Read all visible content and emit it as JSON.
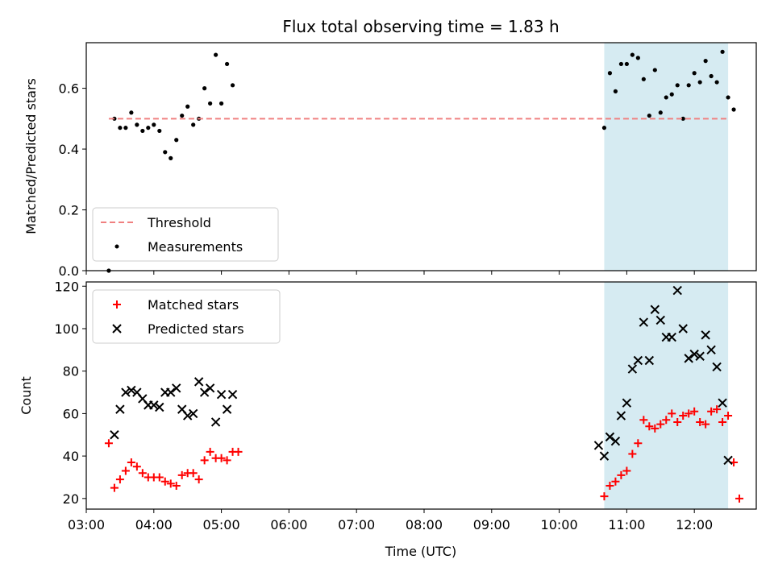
{
  "chart_data": [
    {
      "type": "scatter",
      "title": "Flux total observing time = 1.83 h",
      "xlabel": "",
      "ylabel": "Matched/Predicted stars",
      "xlim": [
        "03:00",
        "12:55"
      ],
      "ylim": [
        0,
        0.75
      ],
      "yticks": [
        "0.0",
        "0.2",
        "0.4",
        "0.6"
      ],
      "highlight_span": {
        "x": [
          "10:40",
          "12:30"
        ],
        "color": "#add8e6"
      },
      "legend": {
        "placement": "lower-left",
        "entries": [
          "Threshold",
          "Measurements"
        ]
      },
      "threshold": {
        "name": "Threshold",
        "y": 0.5,
        "x": [
          "03:20",
          "12:30"
        ],
        "color": "#f08080"
      },
      "series": [
        {
          "name": "Measurements",
          "color": "#000000",
          "points": [
            {
              "x": "03:20",
              "y": 0.0
            },
            {
              "x": "03:25",
              "y": 0.5
            },
            {
              "x": "03:30",
              "y": 0.47
            },
            {
              "x": "03:35",
              "y": 0.47
            },
            {
              "x": "03:40",
              "y": 0.52
            },
            {
              "x": "03:45",
              "y": 0.48
            },
            {
              "x": "03:50",
              "y": 0.46
            },
            {
              "x": "03:55",
              "y": 0.47
            },
            {
              "x": "04:00",
              "y": 0.48
            },
            {
              "x": "04:05",
              "y": 0.46
            },
            {
              "x": "04:10",
              "y": 0.39
            },
            {
              "x": "04:15",
              "y": 0.37
            },
            {
              "x": "04:20",
              "y": 0.43
            },
            {
              "x": "04:25",
              "y": 0.51
            },
            {
              "x": "04:30",
              "y": 0.54
            },
            {
              "x": "04:35",
              "y": 0.48
            },
            {
              "x": "04:40",
              "y": 0.5
            },
            {
              "x": "04:45",
              "y": 0.6
            },
            {
              "x": "04:50",
              "y": 0.55
            },
            {
              "x": "04:55",
              "y": 0.71
            },
            {
              "x": "05:00",
              "y": 0.55
            },
            {
              "x": "05:05",
              "y": 0.68
            },
            {
              "x": "05:10",
              "y": 0.61
            },
            {
              "x": "10:40",
              "y": 0.47
            },
            {
              "x": "10:45",
              "y": 0.65
            },
            {
              "x": "10:50",
              "y": 0.59
            },
            {
              "x": "10:55",
              "y": 0.68
            },
            {
              "x": "11:00",
              "y": 0.68
            },
            {
              "x": "11:05",
              "y": 0.71
            },
            {
              "x": "11:10",
              "y": 0.7
            },
            {
              "x": "11:15",
              "y": 0.63
            },
            {
              "x": "11:20",
              "y": 0.51
            },
            {
              "x": "11:25",
              "y": 0.66
            },
            {
              "x": "11:30",
              "y": 0.52
            },
            {
              "x": "11:35",
              "y": 0.57
            },
            {
              "x": "11:40",
              "y": 0.58
            },
            {
              "x": "11:45",
              "y": 0.61
            },
            {
              "x": "11:50",
              "y": 0.5
            },
            {
              "x": "11:55",
              "y": 0.61
            },
            {
              "x": "12:00",
              "y": 0.65
            },
            {
              "x": "12:05",
              "y": 0.62
            },
            {
              "x": "12:10",
              "y": 0.69
            },
            {
              "x": "12:15",
              "y": 0.64
            },
            {
              "x": "12:20",
              "y": 0.62
            },
            {
              "x": "12:25",
              "y": 0.72
            },
            {
              "x": "12:30",
              "y": 0.57
            },
            {
              "x": "12:35",
              "y": 0.53
            }
          ]
        }
      ]
    },
    {
      "type": "scatter",
      "title": "",
      "xlabel": "Time (UTC)",
      "ylabel": "Count",
      "xlim": [
        "03:00",
        "12:55"
      ],
      "ylim": [
        15,
        122
      ],
      "xticks": [
        "03:00",
        "04:00",
        "05:00",
        "06:00",
        "07:00",
        "08:00",
        "09:00",
        "10:00",
        "11:00",
        "12:00"
      ],
      "yticks": [
        "20",
        "40",
        "60",
        "80",
        "100",
        "120"
      ],
      "highlight_span": {
        "x": [
          "10:40",
          "12:30"
        ],
        "color": "#add8e6"
      },
      "legend": {
        "placement": "upper-left",
        "entries": [
          "Matched stars",
          "Predicted stars"
        ]
      },
      "series": [
        {
          "name": "Matched stars",
          "marker": "plus",
          "color": "#ff0000",
          "points": [
            {
              "x": "03:20",
              "y": 46
            },
            {
              "x": "03:25",
              "y": 25
            },
            {
              "x": "03:30",
              "y": 29
            },
            {
              "x": "03:35",
              "y": 33
            },
            {
              "x": "03:40",
              "y": 37
            },
            {
              "x": "03:45",
              "y": 35
            },
            {
              "x": "03:50",
              "y": 32
            },
            {
              "x": "03:55",
              "y": 30
            },
            {
              "x": "04:00",
              "y": 30
            },
            {
              "x": "04:05",
              "y": 30
            },
            {
              "x": "04:10",
              "y": 28
            },
            {
              "x": "04:15",
              "y": 27
            },
            {
              "x": "04:20",
              "y": 26
            },
            {
              "x": "04:25",
              "y": 31
            },
            {
              "x": "04:30",
              "y": 32
            },
            {
              "x": "04:35",
              "y": 32
            },
            {
              "x": "04:40",
              "y": 29
            },
            {
              "x": "04:45",
              "y": 38
            },
            {
              "x": "04:50",
              "y": 42
            },
            {
              "x": "04:55",
              "y": 39
            },
            {
              "x": "05:00",
              "y": 39
            },
            {
              "x": "05:05",
              "y": 38
            },
            {
              "x": "05:10",
              "y": 42
            },
            {
              "x": "05:15",
              "y": 42
            },
            {
              "x": "10:40",
              "y": 21
            },
            {
              "x": "10:45",
              "y": 26
            },
            {
              "x": "10:50",
              "y": 28
            },
            {
              "x": "10:55",
              "y": 31
            },
            {
              "x": "11:00",
              "y": 33
            },
            {
              "x": "11:05",
              "y": 41
            },
            {
              "x": "11:10",
              "y": 46
            },
            {
              "x": "11:15",
              "y": 57
            },
            {
              "x": "11:20",
              "y": 54
            },
            {
              "x": "11:25",
              "y": 53
            },
            {
              "x": "11:30",
              "y": 55
            },
            {
              "x": "11:35",
              "y": 57
            },
            {
              "x": "11:40",
              "y": 60
            },
            {
              "x": "11:45",
              "y": 56
            },
            {
              "x": "11:50",
              "y": 59
            },
            {
              "x": "11:55",
              "y": 60
            },
            {
              "x": "12:00",
              "y": 61
            },
            {
              "x": "12:05",
              "y": 56
            },
            {
              "x": "12:10",
              "y": 55
            },
            {
              "x": "12:15",
              "y": 61
            },
            {
              "x": "12:20",
              "y": 62
            },
            {
              "x": "12:25",
              "y": 56
            },
            {
              "x": "12:30",
              "y": 59
            },
            {
              "x": "12:35",
              "y": 37
            },
            {
              "x": "12:40",
              "y": 20
            }
          ]
        },
        {
          "name": "Predicted stars",
          "marker": "x",
          "color": "#000000",
          "points": [
            {
              "x": "03:25",
              "y": 50
            },
            {
              "x": "03:30",
              "y": 62
            },
            {
              "x": "03:35",
              "y": 70
            },
            {
              "x": "03:40",
              "y": 71
            },
            {
              "x": "03:45",
              "y": 70
            },
            {
              "x": "03:50",
              "y": 67
            },
            {
              "x": "03:55",
              "y": 64
            },
            {
              "x": "04:00",
              "y": 64
            },
            {
              "x": "04:05",
              "y": 63
            },
            {
              "x": "04:10",
              "y": 70
            },
            {
              "x": "04:15",
              "y": 70
            },
            {
              "x": "04:20",
              "y": 72
            },
            {
              "x": "04:25",
              "y": 62
            },
            {
              "x": "04:30",
              "y": 59
            },
            {
              "x": "04:35",
              "y": 60
            },
            {
              "x": "04:40",
              "y": 75
            },
            {
              "x": "04:45",
              "y": 70
            },
            {
              "x": "04:50",
              "y": 72
            },
            {
              "x": "04:55",
              "y": 56
            },
            {
              "x": "05:00",
              "y": 69
            },
            {
              "x": "05:05",
              "y": 62
            },
            {
              "x": "05:10",
              "y": 69
            },
            {
              "x": "10:35",
              "y": 45
            },
            {
              "x": "10:40",
              "y": 40
            },
            {
              "x": "10:45",
              "y": 49
            },
            {
              "x": "10:50",
              "y": 47
            },
            {
              "x": "10:55",
              "y": 59
            },
            {
              "x": "11:00",
              "y": 65
            },
            {
              "x": "11:05",
              "y": 81
            },
            {
              "x": "11:10",
              "y": 85
            },
            {
              "x": "11:15",
              "y": 103
            },
            {
              "x": "11:20",
              "y": 85
            },
            {
              "x": "11:25",
              "y": 109
            },
            {
              "x": "11:30",
              "y": 104
            },
            {
              "x": "11:35",
              "y": 96
            },
            {
              "x": "11:40",
              "y": 96
            },
            {
              "x": "11:45",
              "y": 118
            },
            {
              "x": "11:50",
              "y": 100
            },
            {
              "x": "11:55",
              "y": 86
            },
            {
              "x": "12:00",
              "y": 88
            },
            {
              "x": "12:05",
              "y": 87
            },
            {
              "x": "12:10",
              "y": 97
            },
            {
              "x": "12:15",
              "y": 90
            },
            {
              "x": "12:20",
              "y": 82
            },
            {
              "x": "12:25",
              "y": 65
            },
            {
              "x": "12:30",
              "y": 38
            }
          ]
        }
      ]
    }
  ]
}
